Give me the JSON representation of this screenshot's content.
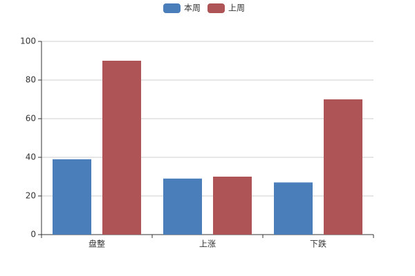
{
  "chart_data": {
    "type": "bar",
    "categories": [
      "盘整",
      "上涨",
      "下跌"
    ],
    "series": [
      {
        "name": "本周",
        "color": "#4a7ebb",
        "values": [
          39,
          29,
          27
        ]
      },
      {
        "name": "上周",
        "color": "#ae5356",
        "values": [
          90,
          30,
          70
        ]
      }
    ],
    "ylim": [
      0,
      100
    ],
    "yticks": [
      0,
      20,
      40,
      60,
      80,
      100
    ],
    "grid": true,
    "legend": "top"
  }
}
